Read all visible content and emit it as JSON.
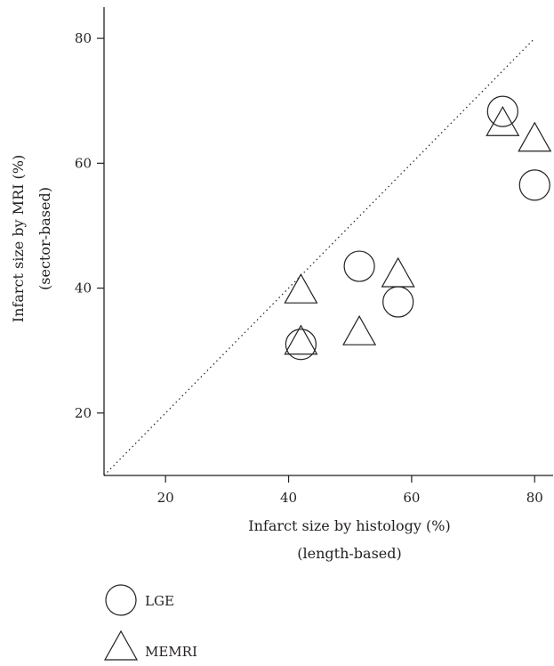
{
  "chart_data": {
    "type": "scatter",
    "title": "",
    "xlabel": "Infarct size by histology (%)",
    "xlabel_sub": "(length-based)",
    "ylabel": "Infarct size by MRI (%)",
    "ylabel_sub": "(sector-based)",
    "xlim": [
      10,
      83
    ],
    "ylim": [
      10,
      85
    ],
    "xticks": [
      20,
      40,
      60,
      80
    ],
    "yticks": [
      20,
      40,
      60,
      80
    ],
    "identity_line": {
      "from": [
        10,
        10
      ],
      "to": [
        80,
        80
      ],
      "style": "dotted"
    },
    "grid": false,
    "legend_position": "bottom-left",
    "series": [
      {
        "name": "LGE",
        "marker": "circle",
        "points": [
          {
            "x": 42,
            "y": 31
          },
          {
            "x": 51.5,
            "y": 43.5
          },
          {
            "x": 57.8,
            "y": 37.8
          },
          {
            "x": 74.8,
            "y": 68.3
          },
          {
            "x": 80,
            "y": 56.5
          }
        ]
      },
      {
        "name": "MEMRI",
        "marker": "triangle",
        "points": [
          {
            "x": 42,
            "y": 39.2
          },
          {
            "x": 42,
            "y": 31
          },
          {
            "x": 51.5,
            "y": 32.5
          },
          {
            "x": 57.8,
            "y": 41.8
          },
          {
            "x": 74.8,
            "y": 66
          },
          {
            "x": 80,
            "y": 63.5
          }
        ]
      }
    ]
  },
  "colors": {
    "ink": "#231f20",
    "background": "#ffffff"
  }
}
